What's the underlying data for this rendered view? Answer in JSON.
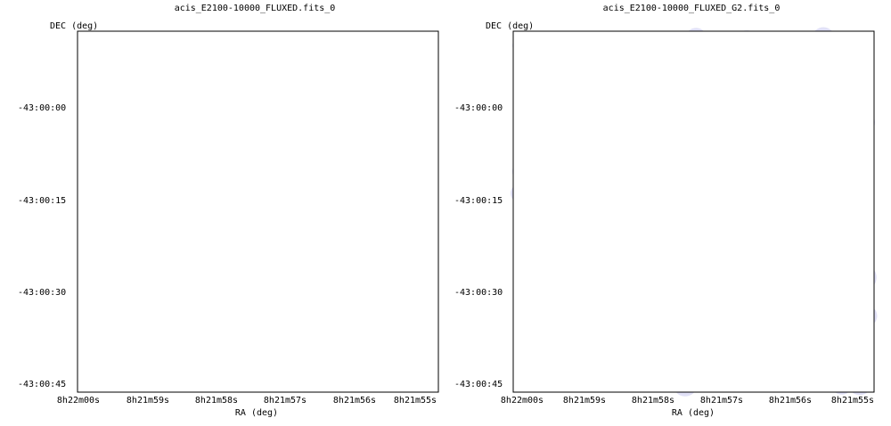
{
  "panels": [
    {
      "title": "acis_E2100-10000_FLUXED.fits_0",
      "ylabel": "DEC (deg)",
      "xlabel": "RA (deg)",
      "xticks": [
        "8h22m00s",
        "8h21m59s",
        "8h21m58s",
        "8h21m57s",
        "8h21m56s",
        "8h21m55s"
      ],
      "yticks": [
        "-43:00:00",
        "-43:00:15",
        "-43:00:30",
        "-43:00:45"
      ],
      "style": "raw"
    },
    {
      "title": "acis_E2100-10000_FLUXED_G2.fits_0",
      "ylabel": "DEC (deg)",
      "xlabel": "RA (deg)",
      "xticks": [
        "8h22m00s",
        "8h21m59s",
        "8h21m58s",
        "8h21m57s",
        "8h21m56s",
        "8h21m55s"
      ],
      "yticks": [
        "-43:00:00",
        "-43:00:15",
        "-43:00:30",
        "-43:00:45"
      ],
      "style": "smoothed"
    }
  ],
  "colors": {
    "background_count": "#8a8cf4",
    "smooth_halo": "#dcdcf6",
    "source_core": [
      "#000000",
      "#8b0000",
      "#ff2000",
      "#ff9000",
      "#ffff00",
      "#00d060",
      "#00a0ff",
      "#2030ff"
    ]
  }
}
